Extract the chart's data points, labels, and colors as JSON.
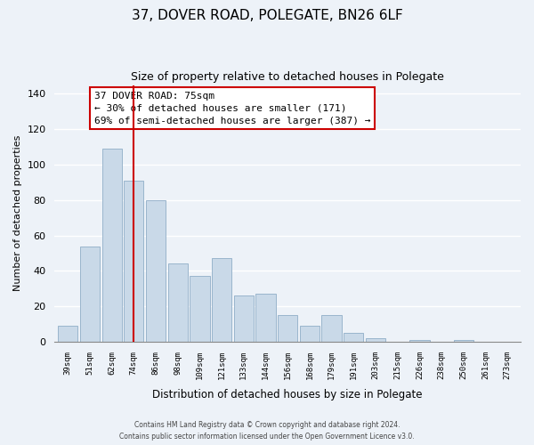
{
  "title": "37, DOVER ROAD, POLEGATE, BN26 6LF",
  "subtitle": "Size of property relative to detached houses in Polegate",
  "xlabel": "Distribution of detached houses by size in Polegate",
  "ylabel": "Number of detached properties",
  "bar_labels": [
    "39sqm",
    "51sqm",
    "62sqm",
    "74sqm",
    "86sqm",
    "98sqm",
    "109sqm",
    "121sqm",
    "133sqm",
    "144sqm",
    "156sqm",
    "168sqm",
    "179sqm",
    "191sqm",
    "203sqm",
    "215sqm",
    "226sqm",
    "238sqm",
    "250sqm",
    "261sqm",
    "273sqm"
  ],
  "bar_values": [
    9,
    54,
    109,
    91,
    80,
    44,
    37,
    47,
    26,
    27,
    15,
    9,
    15,
    5,
    2,
    0,
    1,
    0,
    1,
    0,
    0
  ],
  "bar_color": "#c9d9e8",
  "bar_edge_color": "#9ab5cc",
  "vline_color": "#cc0000",
  "annotation_text": "37 DOVER ROAD: 75sqm\n← 30% of detached houses are smaller (171)\n69% of semi-detached houses are larger (387) →",
  "annotation_box_color": "#ffffff",
  "annotation_box_edge": "#cc0000",
  "ylim": [
    0,
    145
  ],
  "yticks": [
    0,
    20,
    40,
    60,
    80,
    100,
    120,
    140
  ],
  "footnote1": "Contains HM Land Registry data © Crown copyright and database right 2024.",
  "footnote2": "Contains public sector information licensed under the Open Government Licence v3.0.",
  "background_color": "#edf2f8"
}
